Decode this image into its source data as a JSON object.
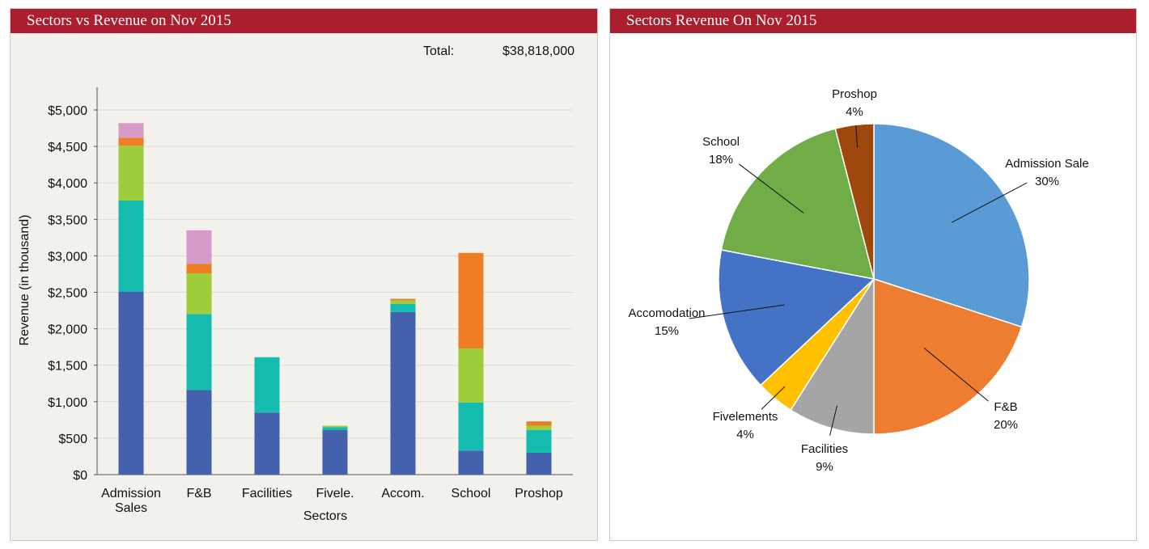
{
  "bar_panel": {
    "title": "Sectors vs Revenue on Nov 2015",
    "total_label": "Total:",
    "total_value": "$38,818,000"
  },
  "pie_panel": {
    "title": "Sectors Revenue On Nov 2015"
  },
  "colors": {
    "header_bg": "#ab1e2d",
    "header_text": "#ffffff",
    "left_panel_bg": "#f3f1ec",
    "stack_colors": [
      "#4361ad",
      "#14bcb0",
      "#9fcc3b",
      "#ee7d26",
      "#d59ac8"
    ]
  },
  "chart_data": [
    {
      "type": "bar",
      "stacked": true,
      "xlabel": "Sectors",
      "ylabel": "Revenue (in thousand)",
      "ylim": [
        0,
        5000
      ],
      "yticks": [
        0,
        500,
        1000,
        1500,
        2000,
        2500,
        3000,
        3500,
        4000,
        4500,
        5000
      ],
      "ytick_labels": [
        "$0",
        "$500",
        "$1,000",
        "$1,500",
        "$2,000",
        "$2,500",
        "$3,000",
        "$3,500",
        "$4,000",
        "$4,500",
        "$5,000"
      ],
      "categories": [
        "Admission Sales",
        "F&B",
        "Facilities",
        "Fivele.",
        "Accom.",
        "School",
        "Proshop"
      ],
      "category_lines": [
        [
          "Admission",
          "Sales"
        ],
        [
          "F&B"
        ],
        [
          "Facilities"
        ],
        [
          "Fivele."
        ],
        [
          "Accom."
        ],
        [
          "School"
        ],
        [
          "Proshop"
        ]
      ],
      "grid": true,
      "legend": "none",
      "series": [
        {
          "color": "#4361ad",
          "values": [
            2510,
            1160,
            850,
            610,
            2230,
            330,
            300
          ]
        },
        {
          "color": "#14bcb0",
          "values": [
            1250,
            1040,
            760,
            40,
            110,
            660,
            310
          ]
        },
        {
          "color": "#9fcc3b",
          "values": [
            750,
            560,
            0,
            20,
            50,
            740,
            60
          ]
        },
        {
          "color": "#ee7d26",
          "values": [
            110,
            130,
            0,
            0,
            20,
            1310,
            60
          ]
        },
        {
          "color": "#d59ac8",
          "values": [
            200,
            460,
            0,
            0,
            0,
            0,
            0
          ]
        }
      ]
    },
    {
      "type": "pie",
      "start_angle_deg": 0,
      "direction": "clockwise",
      "slices": [
        {
          "label": "Admission Sale",
          "value": 30,
          "pct_label": "30%",
          "color": "#5b9bd5"
        },
        {
          "label": "F&B",
          "value": 20,
          "pct_label": "20%",
          "color": "#ed7d31"
        },
        {
          "label": "Facilities",
          "value": 9,
          "pct_label": "9%",
          "color": "#a5a5a5"
        },
        {
          "label": "Fivelements",
          "value": 4,
          "pct_label": "4%",
          "color": "#ffc000"
        },
        {
          "label": "Accomodation",
          "value": 15,
          "pct_label": "15%",
          "color": "#4472c4"
        },
        {
          "label": "School",
          "value": 18,
          "pct_label": "18%",
          "color": "#70ad47"
        },
        {
          "label": "Proshop",
          "value": 4,
          "pct_label": "4%",
          "color": "#9e480e"
        }
      ]
    }
  ]
}
